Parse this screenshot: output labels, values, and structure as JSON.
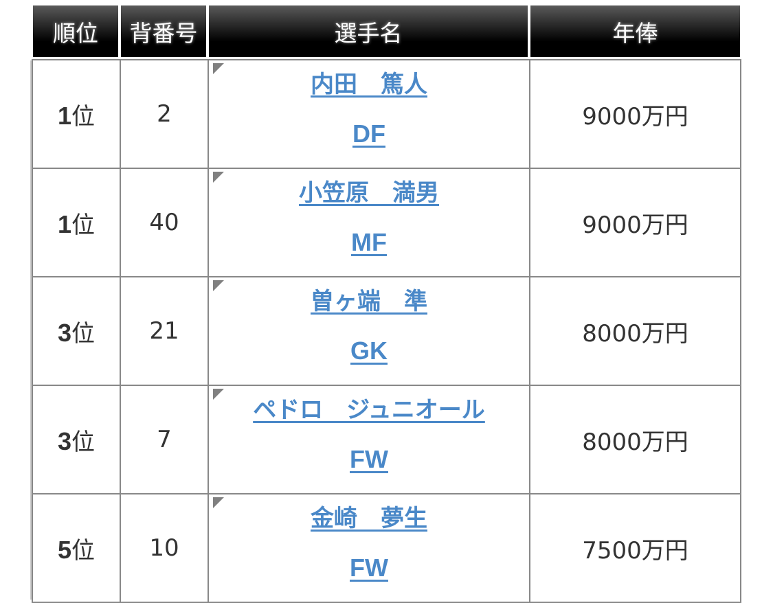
{
  "headers": [
    "順位",
    "背番号",
    "選手名",
    "年俸"
  ],
  "rows": [
    {
      "rank_num": "1",
      "rank_suffix": "位",
      "number": "2",
      "name": "内田　篤人",
      "position": "DF",
      "salary": "9000万円"
    },
    {
      "rank_num": "1",
      "rank_suffix": "位",
      "number": "40",
      "name": "小笠原　満男",
      "position": "MF",
      "salary": "9000万円"
    },
    {
      "rank_num": "3",
      "rank_suffix": "位",
      "number": "21",
      "name": "曽ヶ端　準",
      "position": "GK",
      "salary": "8000万円"
    },
    {
      "rank_num": "3",
      "rank_suffix": "位",
      "number": "7",
      "name": "ペドロ　ジュニオール",
      "position": "FW",
      "salary": "8000万円"
    },
    {
      "rank_num": "5",
      "rank_suffix": "位",
      "number": "10",
      "name": "金崎　夢生",
      "position": "FW",
      "salary": "7500万円"
    }
  ],
  "colors": {
    "link": "#4a88c8",
    "header_bg": "#000000",
    "border": "#888888"
  }
}
